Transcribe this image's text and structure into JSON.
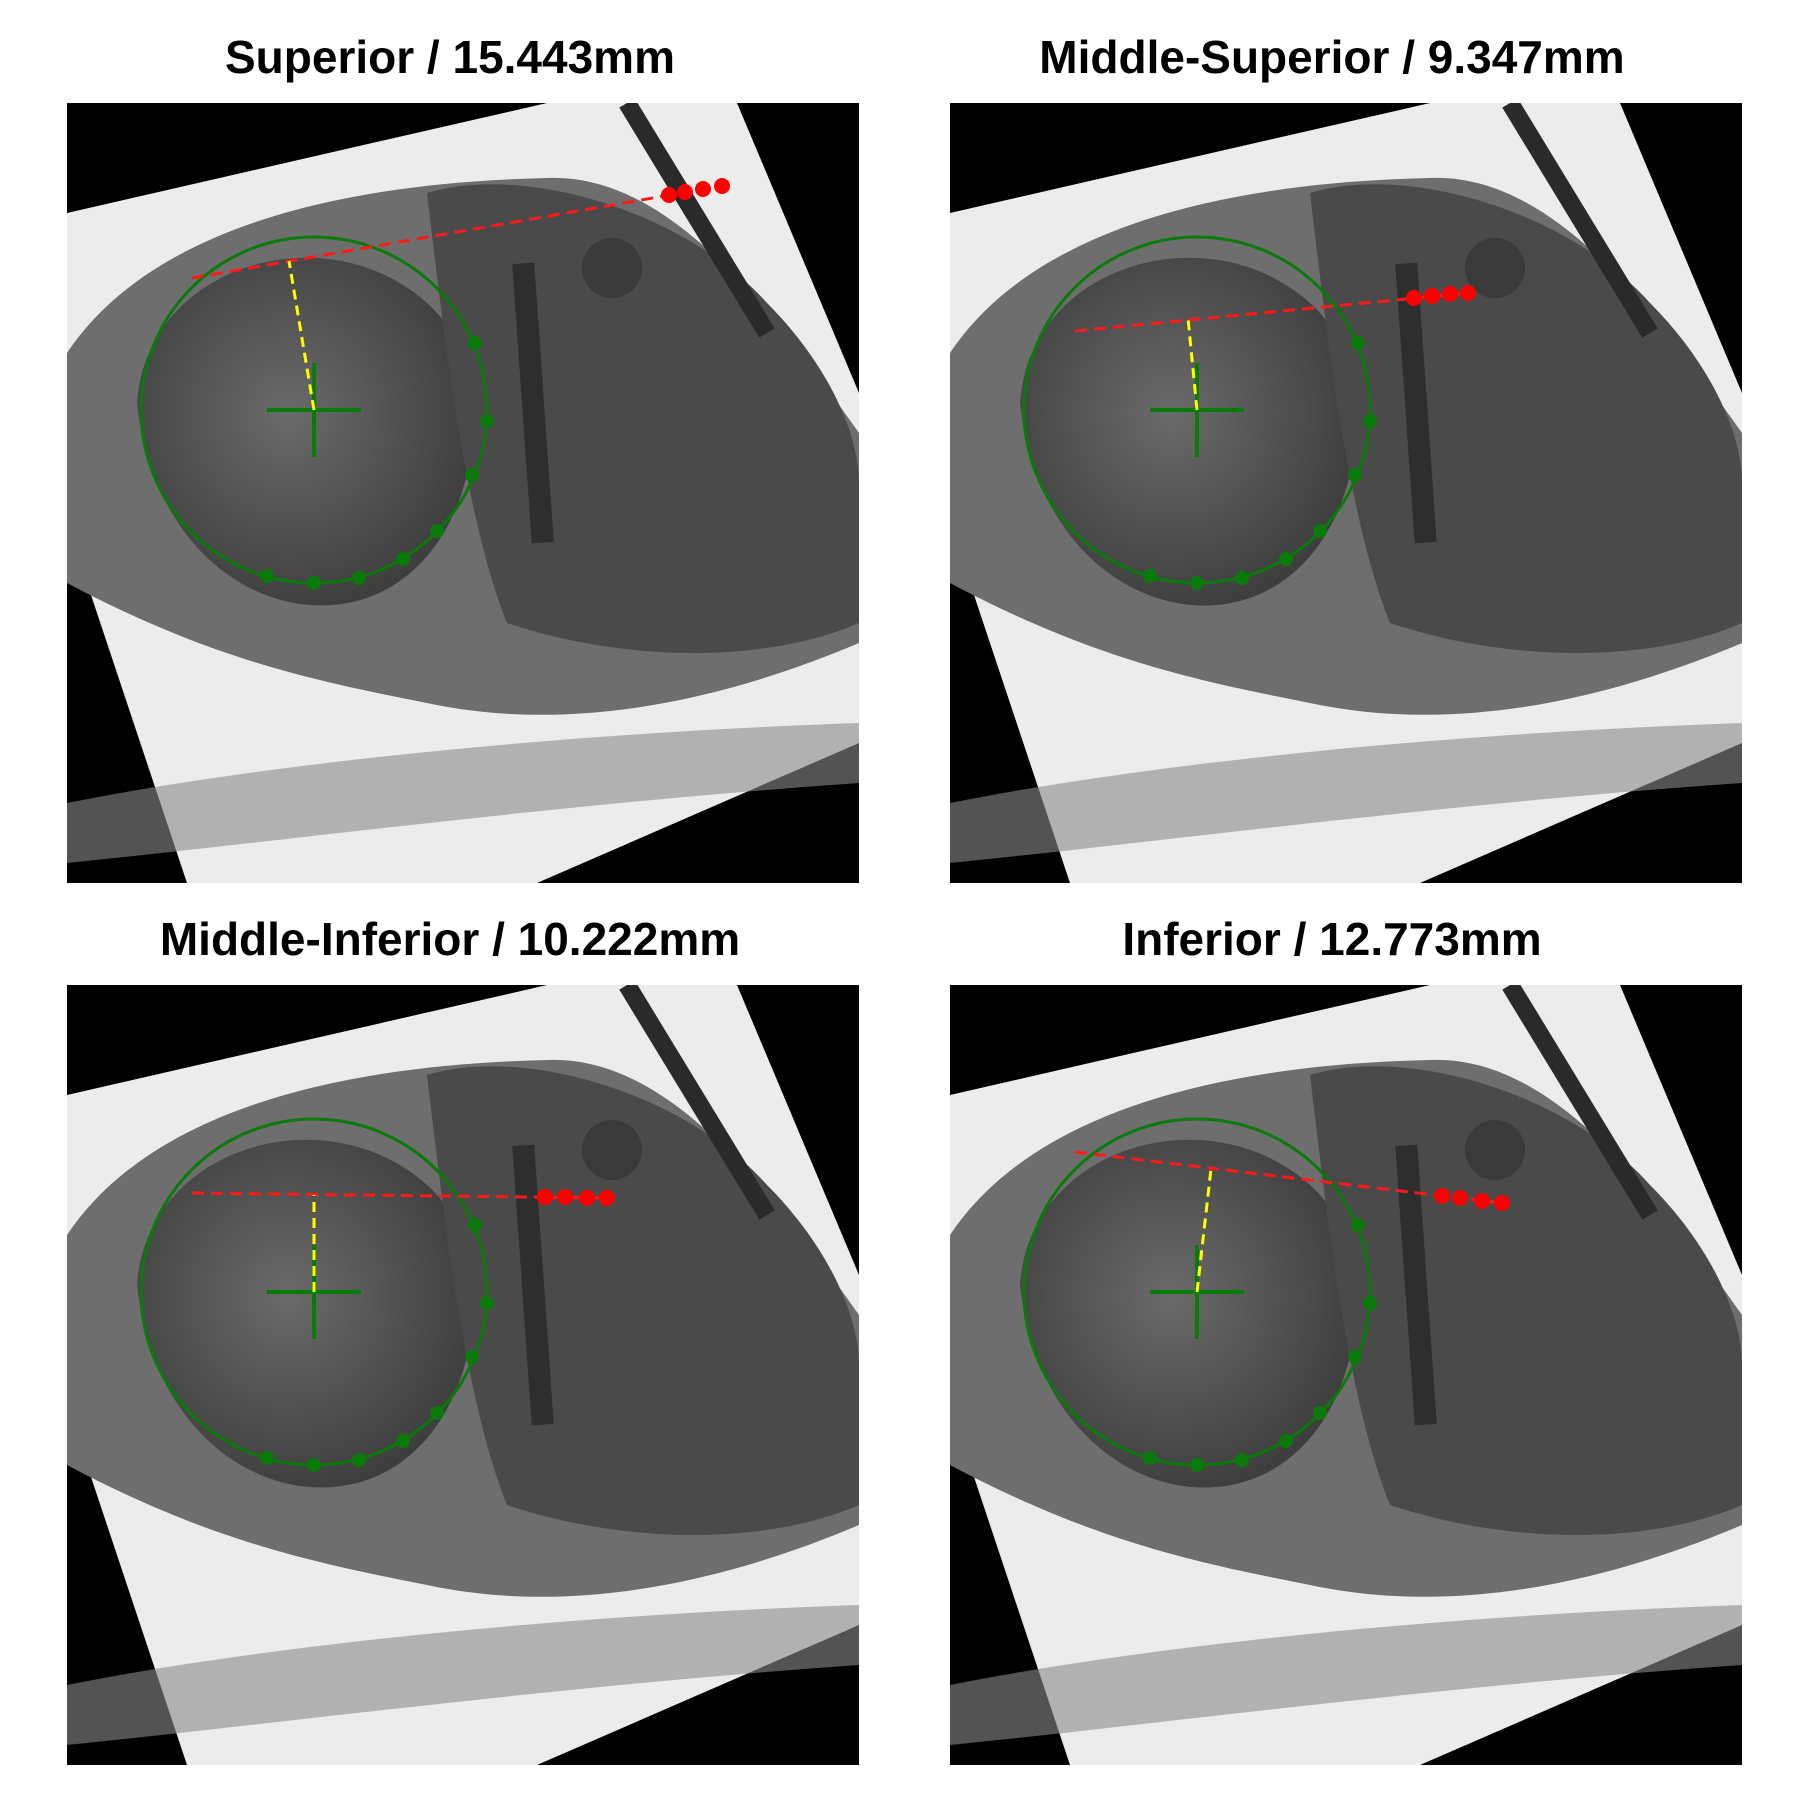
{
  "panels": [
    {
      "title": "Superior / 15.443mm"
    },
    {
      "title": "Middle-Superior / 9.347mm"
    },
    {
      "title": "Middle-Inferior / 10.222mm"
    },
    {
      "title": "Inferior / 12.773mm"
    }
  ],
  "colors": {
    "circle": "#0a7a0a",
    "center_cross": "#0a7a0a",
    "fit_points": "#0a7a0a",
    "line_points": "#ff0000",
    "dashed_line": "#ff1a1a",
    "perpendicular": "#ffff00",
    "mask": "#000000"
  }
}
